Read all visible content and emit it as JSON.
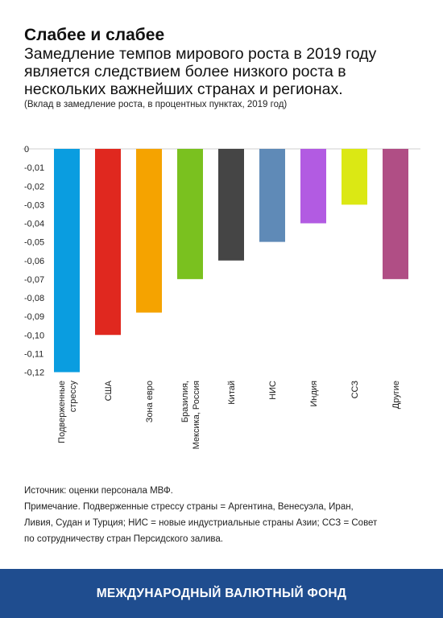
{
  "header": {
    "title": "Слабее и слабее",
    "subtitle": "Замедление темпов мирового роста в 2019 году является следствием более низкого роста в нескольких важнейших странах и регионах.",
    "note": "(Вклад в замедление роста, в процентных пунктах, 2019 год)"
  },
  "chart_data": {
    "type": "bar",
    "categories": [
      "Подверженные стрессу",
      "США",
      "Зона евро",
      "Бразилия, Мексика, Россия",
      "Китай",
      "НИС",
      "Индия",
      "ССЗ",
      "Другие"
    ],
    "category_label_lines": [
      [
        "Подверженные",
        "стрессу"
      ],
      [
        "США"
      ],
      [
        "Зона евро"
      ],
      [
        "Бразилия,",
        "Мексика, Россия"
      ],
      [
        "Китай"
      ],
      [
        "НИС"
      ],
      [
        "Индия"
      ],
      [
        "ССЗ"
      ],
      [
        "Другие"
      ]
    ],
    "values": [
      -0.12,
      -0.1,
      -0.088,
      -0.07,
      -0.06,
      -0.05,
      -0.04,
      -0.03,
      -0.07
    ],
    "colors": [
      "#0a9de0",
      "#e0281f",
      "#f5a300",
      "#7ac11f",
      "#454545",
      "#5f8ab7",
      "#b25be2",
      "#dbe814",
      "#b04e85"
    ],
    "ylim": [
      -0.12,
      0
    ],
    "yticks": [
      0,
      -0.01,
      -0.02,
      -0.03,
      -0.04,
      -0.05,
      -0.06,
      -0.07,
      -0.08,
      -0.09,
      -0.1,
      -0.11,
      -0.12
    ],
    "ytick_labels": [
      "0",
      "-0,01",
      "-0,02",
      "-0,03",
      "-0,04",
      "-0,05",
      "-0,06",
      "-0,07",
      "-0,08",
      "-0,09",
      "-0,10",
      "-0,11",
      "-0,12"
    ],
    "grid": true,
    "title": "",
    "xlabel": "",
    "ylabel": ""
  },
  "footnotes": {
    "source": "Источник: оценки персонала МВФ.",
    "note_line1": "Примечание. Подверженные стрессу страны = Аргентина, Венесуэла, Иран,",
    "note_line2": "Ливия, Судан и Турция; НИС = новые индустриальные страны Азии; ССЗ = Совет",
    "note_line3": "по сотрудничеству стран Персидского залива."
  },
  "footer": {
    "label": "МЕЖДУНАРОДНЫЙ ВАЛЮТНЫЙ ФОНД",
    "background": "#1f4d8f"
  }
}
